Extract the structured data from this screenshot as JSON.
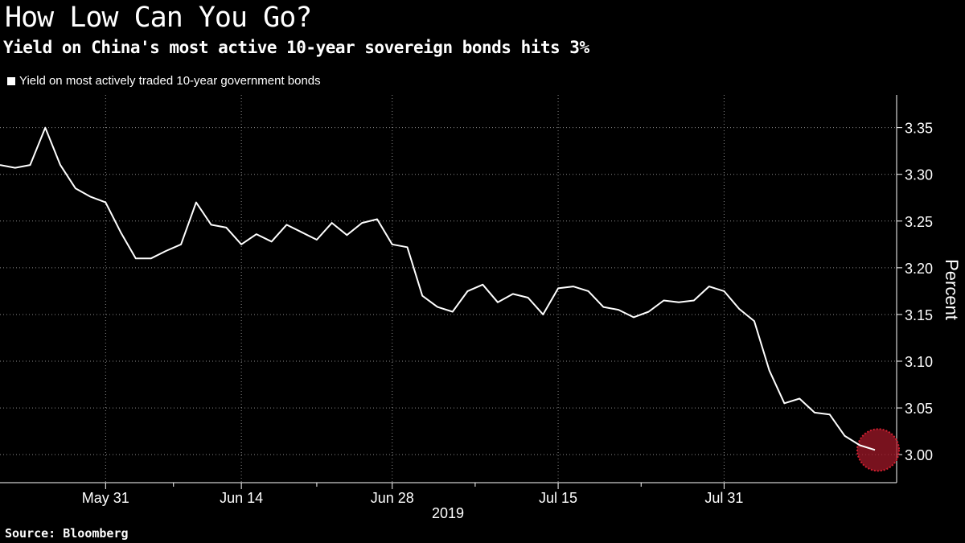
{
  "chart_data": {
    "type": "line",
    "title": "How Low Can You Go?",
    "subtitle": "Yield on China's most active 10-year sovereign bonds hits 3%",
    "ylabel": "Percent",
    "xlabel": "2019",
    "source": "Source: Bloomberg",
    "ylim": [
      2.97,
      3.385
    ],
    "yticks": [
      "3.00",
      "3.05",
      "3.10",
      "3.15",
      "3.20",
      "3.25",
      "3.30",
      "3.35"
    ],
    "xticks": [
      {
        "label": "May 31",
        "idx": 7
      },
      {
        "label": "Jun 14",
        "idx": 16
      },
      {
        "label": "Jun 28",
        "idx": 26
      },
      {
        "label": "Jul 15",
        "idx": 37
      },
      {
        "label": "Jul 31",
        "idx": 48
      }
    ],
    "grid": true,
    "legend_position": "top-left",
    "highlight_color": "#a01828",
    "series": [
      {
        "name": "Yield on most actively traded 10-year government bonds",
        "color": "#ffffff",
        "values": [
          3.31,
          3.307,
          3.31,
          3.35,
          3.31,
          3.285,
          3.276,
          3.27,
          3.238,
          3.21,
          3.21,
          3.218,
          3.225,
          3.27,
          3.246,
          3.243,
          3.225,
          3.236,
          3.228,
          3.246,
          3.238,
          3.23,
          3.248,
          3.235,
          3.248,
          3.252,
          3.225,
          3.222,
          3.17,
          3.158,
          3.153,
          3.175,
          3.182,
          3.163,
          3.172,
          3.168,
          3.15,
          3.178,
          3.18,
          3.175,
          3.158,
          3.155,
          3.147,
          3.153,
          3.165,
          3.163,
          3.165,
          3.18,
          3.175,
          3.156,
          3.143,
          3.09,
          3.055,
          3.06,
          3.045,
          3.043,
          3.02,
          3.01,
          3.005
        ]
      }
    ]
  }
}
